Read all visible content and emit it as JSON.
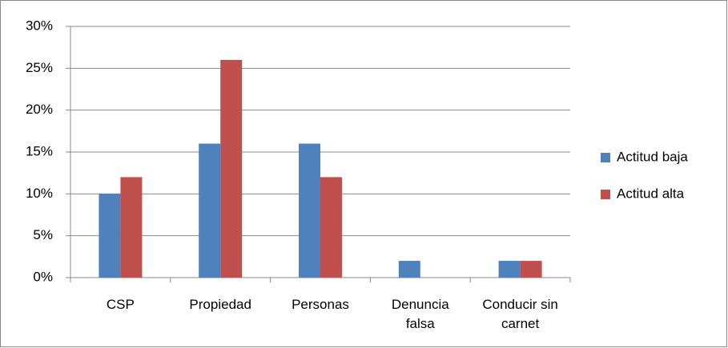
{
  "chart_data": {
    "type": "bar",
    "categories": [
      "CSP",
      "Propiedad",
      "Personas",
      "Denuncia falsa",
      "Conducir sin carnet"
    ],
    "series": [
      {
        "name": "Actitud baja",
        "color": "#4f81bd",
        "values": [
          10,
          16,
          16,
          2,
          2
        ]
      },
      {
        "name": "Actitud alta",
        "color": "#c0504d",
        "values": [
          12,
          26,
          12,
          0,
          2
        ]
      }
    ],
    "ylim": [
      0,
      30
    ],
    "yticks": [
      {
        "value": 0,
        "label": "0%"
      },
      {
        "value": 5,
        "label": "5%"
      },
      {
        "value": 10,
        "label": "10%"
      },
      {
        "value": 15,
        "label": "15%"
      },
      {
        "value": 20,
        "label": "20%"
      },
      {
        "value": 25,
        "label": "25%"
      },
      {
        "value": 30,
        "label": "30%"
      }
    ],
    "grid": true,
    "legend": "right"
  }
}
